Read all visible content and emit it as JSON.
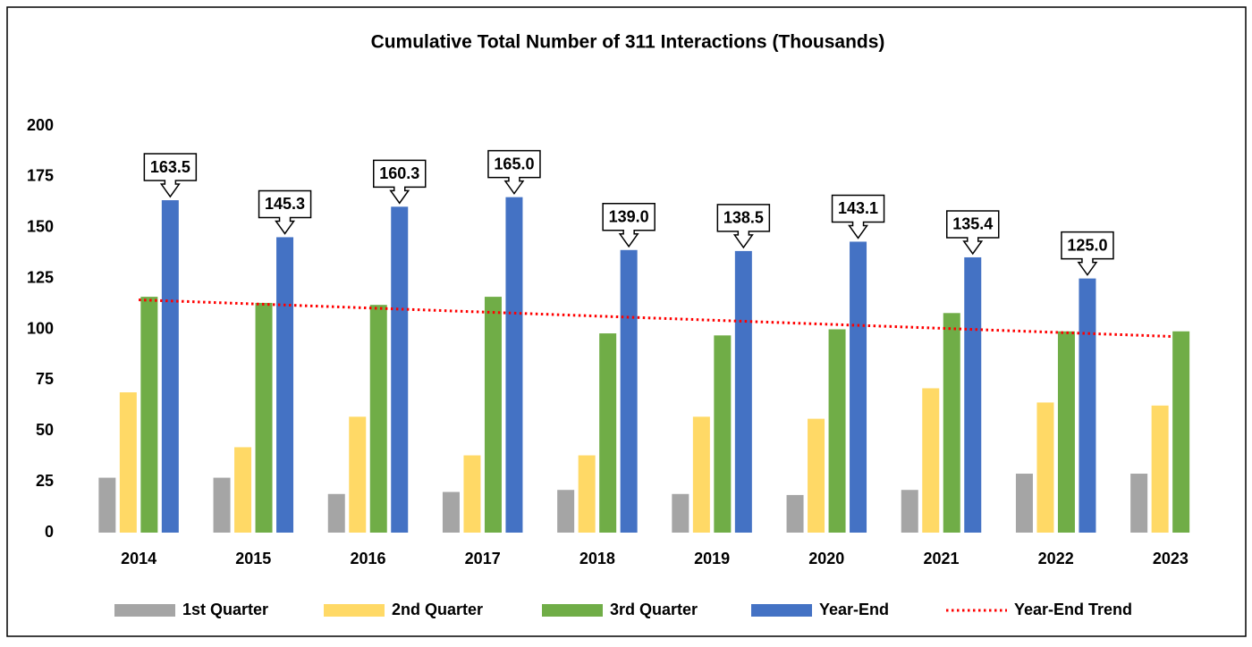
{
  "chart_data": {
    "type": "bar",
    "title": "Cumulative Total Number of 311 Interactions (Thousands)",
    "categories": [
      "2014",
      "2015",
      "2016",
      "2017",
      "2018",
      "2019",
      "2020",
      "2021",
      "2022",
      "2023"
    ],
    "series": [
      {
        "name": "1st Quarter",
        "color": "#a5a5a5",
        "values": [
          27,
          27,
          19,
          20,
          21,
          19,
          18.5,
          21,
          29,
          29
        ]
      },
      {
        "name": "2nd Quarter",
        "color": "#ffd966",
        "values": [
          69,
          42,
          57,
          38,
          38,
          57,
          56,
          71,
          64,
          62.5
        ]
      },
      {
        "name": "3rd Quarter",
        "color": "#70ad47",
        "values": [
          116,
          113,
          112,
          116,
          98,
          97,
          100,
          108,
          99,
          99
        ]
      },
      {
        "name": "Year-End",
        "color": "#4472c4",
        "values": [
          163.5,
          145.3,
          160.3,
          165,
          139,
          138.5,
          143.1,
          135.4,
          125,
          null
        ],
        "value_labels": [
          "163.5",
          "145.3",
          "160.3",
          "165.0",
          "139.0",
          "138.5",
          "143.1",
          "135.4",
          "125.0",
          null
        ]
      },
      {
        "name": "Year-End Trend",
        "color": "#ff0000",
        "style": "dotted",
        "values": [
          114.5,
          112.5,
          110.5,
          108.5,
          106.5,
          104.5,
          102.5,
          100.5,
          98.5,
          96.5
        ]
      }
    ],
    "ylim": [
      0,
      200
    ],
    "yticks": [
      0,
      25,
      50,
      75,
      100,
      125,
      150,
      175,
      200
    ],
    "grid": false,
    "legend": "bottom"
  }
}
